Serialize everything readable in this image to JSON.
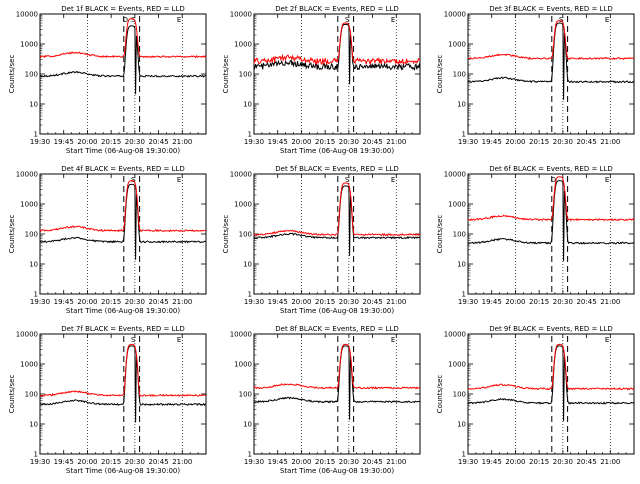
{
  "figure": {
    "background": "#ffffff",
    "colors": {
      "events": "#000000",
      "lld": "#ff0000",
      "axes": "#000000"
    }
  },
  "chart_data": [
    {
      "type": "line",
      "title": "Det 1f BLACK = Events, RED = LLD",
      "xlabel": "Start Time (06-Aug-08 19:30:00)",
      "ylabel": "Counts/sec",
      "yscale": "log",
      "ylim": [
        1,
        10000
      ],
      "x_tick_labels": [
        "19:30",
        "19:45",
        "20:00",
        "20:15",
        "20:30",
        "20:45",
        "21:00"
      ],
      "y_tick_labels": [
        "1",
        "10",
        "100",
        "1000",
        "10000"
      ],
      "markers": [
        "D",
        "S",
        "E"
      ],
      "grid": "vertical dotted at 20:00, 20:30, 21:00",
      "series": [
        {
          "name": "Events",
          "color": "#000000",
          "baseline": 85,
          "peak": 4000
        },
        {
          "name": "LLD",
          "color": "#ff0000",
          "baseline": 380,
          "peak": 7000
        }
      ]
    },
    {
      "type": "line",
      "title": "Det 2f BLACK = Events, RED = LLD",
      "xlabel": "Start Time (06-Aug-08 19:30:00)",
      "ylabel": "Counts/sec",
      "yscale": "log",
      "ylim": [
        1,
        10000
      ],
      "x_tick_labels": [
        "19:30",
        "19:45",
        "20:00",
        "20:15",
        "20:30",
        "20:45",
        "21:00"
      ],
      "y_tick_labels": [
        "1",
        "10",
        "100",
        "1000",
        "10000"
      ],
      "markers": [
        "S",
        "E"
      ],
      "grid": "vertical dotted at 20:00, 20:30, 21:00",
      "series": [
        {
          "name": "Events",
          "color": "#000000",
          "baseline": 180,
          "peak": 4500
        },
        {
          "name": "LLD",
          "color": "#ff0000",
          "baseline": 270,
          "peak": 5000
        }
      ]
    },
    {
      "type": "line",
      "title": "Det 3f BLACK = Events, RED = LLD",
      "xlabel": "",
      "ylabel": "Counts/sec",
      "yscale": "log",
      "ylim": [
        1,
        10000
      ],
      "x_tick_labels": [
        "19:30",
        "19:45",
        "20:00",
        "20:15",
        "20:30",
        "20:45",
        "21:00"
      ],
      "y_tick_labels": [
        "1",
        "10",
        "100",
        "1000",
        "10000"
      ],
      "markers": [
        "S",
        "E"
      ],
      "grid": "vertical dotted at 20:00, 20:30, 21:00",
      "series": [
        {
          "name": "Events",
          "color": "#000000",
          "baseline": 55,
          "peak": 5000
        },
        {
          "name": "LLD",
          "color": "#ff0000",
          "baseline": 330,
          "peak": 6000
        }
      ]
    },
    {
      "type": "line",
      "title": "Det 4f BLACK = Events, RED = LLD",
      "xlabel": "Start Time (06-Aug-08 19:30:00)",
      "ylabel": "Counts/sec",
      "yscale": "log",
      "ylim": [
        1,
        10000
      ],
      "x_tick_labels": [
        "19:30",
        "19:45",
        "20:00",
        "20:15",
        "20:30",
        "20:45",
        "21:00"
      ],
      "y_tick_labels": [
        "1",
        "10",
        "100",
        "1000",
        "10000"
      ],
      "markers": [
        "S",
        "E"
      ],
      "grid": "vertical dotted at 20:00, 20:30, 21:00",
      "series": [
        {
          "name": "Events",
          "color": "#000000",
          "baseline": 55,
          "peak": 4500
        },
        {
          "name": "LLD",
          "color": "#ff0000",
          "baseline": 130,
          "peak": 6000
        }
      ]
    },
    {
      "type": "line",
      "title": "Det 5f BLACK = Events, RED = LLD",
      "xlabel": "Start Time (06-Aug-08 19:30:00)",
      "ylabel": "Counts/sec",
      "yscale": "log",
      "ylim": [
        1,
        10000
      ],
      "x_tick_labels": [
        "19:30",
        "19:45",
        "20:00",
        "20:15",
        "20:30",
        "20:45",
        "21:00"
      ],
      "y_tick_labels": [
        "1",
        "10",
        "100",
        "1000",
        "10000"
      ],
      "markers": [
        "S",
        "E"
      ],
      "grid": "vertical dotted at 20:00, 20:30, 21:00",
      "series": [
        {
          "name": "Events",
          "color": "#000000",
          "baseline": 75,
          "peak": 4000
        },
        {
          "name": "LLD",
          "color": "#ff0000",
          "baseline": 95,
          "peak": 5000
        }
      ]
    },
    {
      "type": "line",
      "title": "Det 6f BLACK = Events, RED = LLD",
      "xlabel": "",
      "ylabel": "Counts/sec",
      "yscale": "log",
      "ylim": [
        1,
        10000
      ],
      "x_tick_labels": [
        "19:30",
        "19:45",
        "20:00",
        "20:15",
        "20:30",
        "20:45",
        "21:00"
      ],
      "y_tick_labels": [
        "1",
        "10",
        "100",
        "1000",
        "10000"
      ],
      "markers": [
        "D",
        "E"
      ],
      "grid": "vertical dotted at 20:00, 20:30, 21:00",
      "series": [
        {
          "name": "Events",
          "color": "#000000",
          "baseline": 50,
          "peak": 6000
        },
        {
          "name": "LLD",
          "color": "#ff0000",
          "baseline": 300,
          "peak": 8000
        }
      ]
    },
    {
      "type": "line",
      "title": "Det 7f BLACK = Events, RED = LLD",
      "xlabel": "Start Time (06-Aug-08 19:30:00)",
      "ylabel": "Counts/sec",
      "yscale": "log",
      "ylim": [
        1,
        10000
      ],
      "x_tick_labels": [
        "19:30",
        "19:45",
        "20:00",
        "20:15",
        "20:30",
        "20:45",
        "21:00"
      ],
      "y_tick_labels": [
        "1",
        "10",
        "100",
        "1000",
        "10000"
      ],
      "markers": [
        "S",
        "E"
      ],
      "grid": "vertical dotted at 20:00, 20:30, 21:00",
      "series": [
        {
          "name": "Events",
          "color": "#000000",
          "baseline": 45,
          "peak": 4000
        },
        {
          "name": "LLD",
          "color": "#ff0000",
          "baseline": 90,
          "peak": 4500
        }
      ]
    },
    {
      "type": "line",
      "title": "Det 8f BLACK = Events, RED = LLD",
      "xlabel": "Start Time (06-Aug-08 19:30:00)",
      "ylabel": "",
      "yscale": "log",
      "ylim": [
        1,
        10000
      ],
      "x_tick_labels": [
        "19:30",
        "19:45",
        "20:00",
        "20:15",
        "20:30",
        "20:45",
        "21:00"
      ],
      "y_tick_labels": [
        "1",
        "10",
        "100",
        "1000",
        "10000"
      ],
      "markers": [
        "E"
      ],
      "grid": "vertical dotted at 20:00, 20:30, 21:00",
      "series": [
        {
          "name": "Events",
          "color": "#000000",
          "baseline": 55,
          "peak": 4000
        },
        {
          "name": "LLD",
          "color": "#ff0000",
          "baseline": 160,
          "peak": 4500
        }
      ]
    },
    {
      "type": "line",
      "title": "Det 9f BLACK = Events, RED = LLD",
      "xlabel": "",
      "ylabel": "Counts/sec",
      "yscale": "log",
      "ylim": [
        1,
        10000
      ],
      "x_tick_labels": [
        "19:30",
        "19:45",
        "20:00",
        "20:15",
        "20:30",
        "20:45",
        "21:00"
      ],
      "y_tick_labels": [
        "1",
        "10",
        "100",
        "1000",
        "10000"
      ],
      "markers": [
        "E"
      ],
      "grid": "vertical dotted at 20:00, 20:30, 21:00",
      "series": [
        {
          "name": "Events",
          "color": "#000000",
          "baseline": 50,
          "peak": 4000
        },
        {
          "name": "LLD",
          "color": "#ff0000",
          "baseline": 150,
          "peak": 4500
        }
      ]
    }
  ]
}
